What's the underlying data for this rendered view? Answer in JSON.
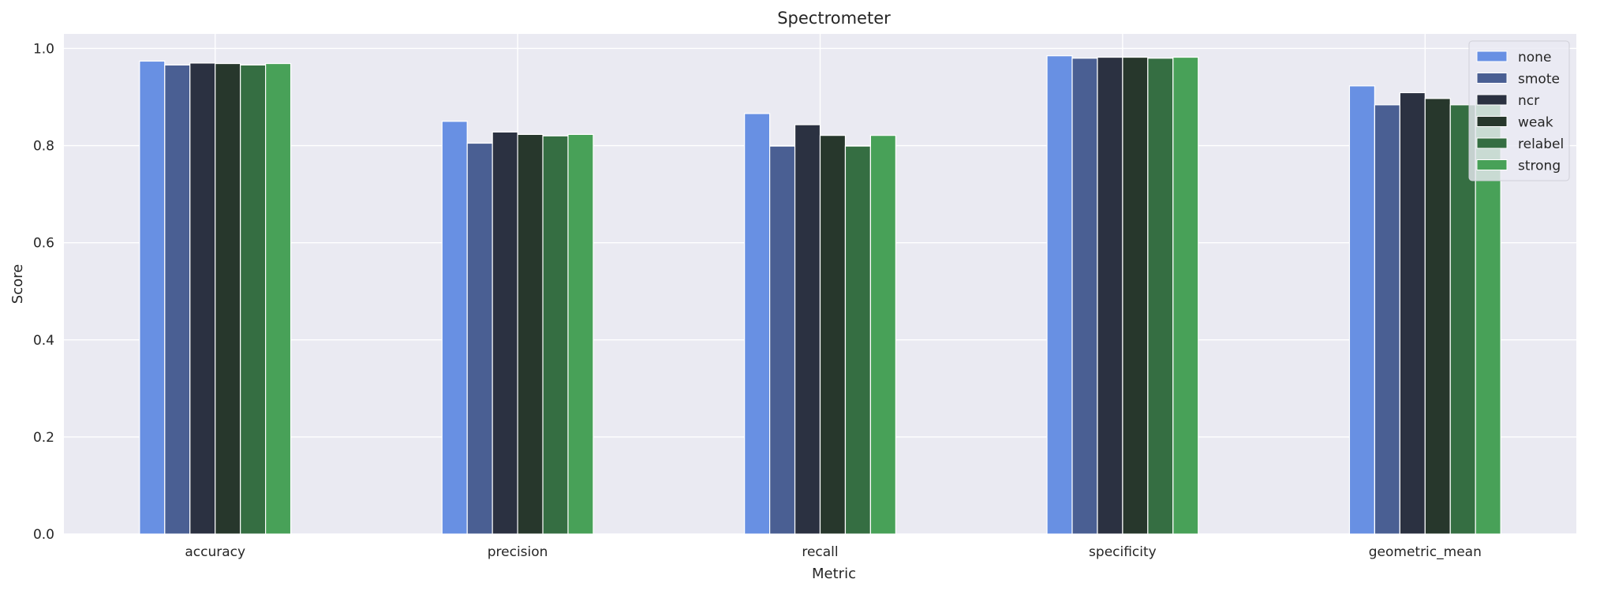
{
  "chart_data": {
    "type": "bar",
    "title": "Spectrometer",
    "xlabel": "Metric",
    "ylabel": "Score",
    "ylim": [
      0,
      1.03
    ],
    "yticks": [
      0.0,
      0.2,
      0.4,
      0.6,
      0.8,
      1.0
    ],
    "ytick_labels": [
      "0.0",
      "0.2",
      "0.4",
      "0.6",
      "0.8",
      "1.0"
    ],
    "grid": true,
    "legend_position": "top-right",
    "categories": [
      "accuracy",
      "precision",
      "recall",
      "specificity",
      "geometric_mean"
    ],
    "series": [
      {
        "name": "none",
        "color": "#6890e3",
        "values": [
          0.974,
          0.85,
          0.866,
          0.985,
          0.923
        ]
      },
      {
        "name": "smote",
        "color": "#4a5f93",
        "values": [
          0.966,
          0.805,
          0.799,
          0.98,
          0.884
        ]
      },
      {
        "name": "ncr",
        "color": "#2b3141",
        "values": [
          0.97,
          0.828,
          0.843,
          0.982,
          0.909
        ]
      },
      {
        "name": "weak",
        "color": "#27372c",
        "values": [
          0.969,
          0.823,
          0.821,
          0.982,
          0.897
        ]
      },
      {
        "name": "relabel",
        "color": "#356e42",
        "values": [
          0.966,
          0.82,
          0.799,
          0.98,
          0.884
        ]
      },
      {
        "name": "strong",
        "color": "#48a158",
        "values": [
          0.969,
          0.823,
          0.821,
          0.982,
          0.897
        ]
      }
    ]
  }
}
